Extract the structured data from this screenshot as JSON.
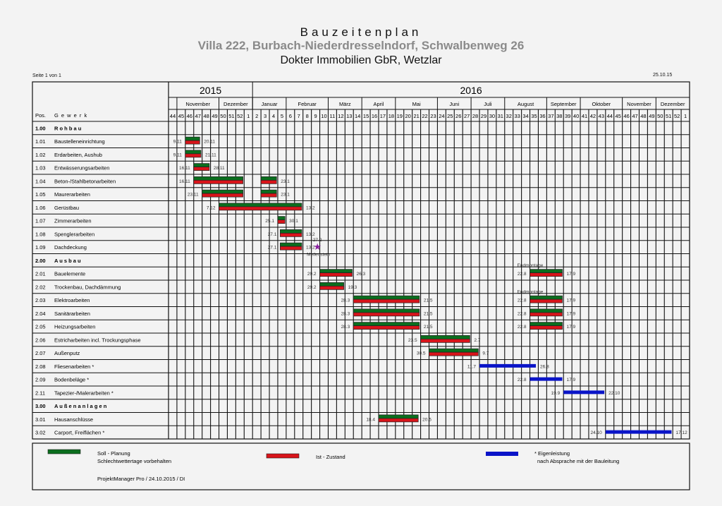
{
  "header": {
    "title": "Bauzeitenplan",
    "subtitle": "Villa 222, Burbach-Niederdresselndorf, Schwalbenweg 26",
    "company": "Dokter Immobilien GbR, Wetzlar",
    "page_info": "Seite 1 von 1",
    "date": "25.10.15"
  },
  "table": {
    "col_pos": "Pos.",
    "col_gewerk": "G e w e r k",
    "years": [
      {
        "label": "2015",
        "weeks": 10
      },
      {
        "label": "2016",
        "weeks": 52
      }
    ],
    "months": [
      {
        "label": "",
        "weeks": 1
      },
      {
        "label": "November",
        "weeks": 5
      },
      {
        "label": "Dezember",
        "weeks": 4
      },
      {
        "label": "Januar",
        "weeks": 4
      },
      {
        "label": "Februar",
        "weeks": 5
      },
      {
        "label": "März",
        "weeks": 4
      },
      {
        "label": "April",
        "weeks": 4
      },
      {
        "label": "Mai",
        "weeks": 5
      },
      {
        "label": "Juni",
        "weeks": 4
      },
      {
        "label": "Juli",
        "weeks": 4
      },
      {
        "label": "August",
        "weeks": 5
      },
      {
        "label": "September",
        "weeks": 4
      },
      {
        "label": "Oktober",
        "weeks": 5
      },
      {
        "label": "November",
        "weeks": 4
      },
      {
        "label": "Dezember",
        "weeks": 4
      }
    ],
    "weeks": [
      "44",
      "45",
      "46",
      "47",
      "48",
      "49",
      "50",
      "51",
      "52",
      "1",
      "2",
      "3",
      "4",
      "5",
      "6",
      "7",
      "8",
      "9",
      "10",
      "11",
      "12",
      "13",
      "14",
      "15",
      "16",
      "17",
      "18",
      "19",
      "20",
      "21",
      "22",
      "23",
      "24",
      "25",
      "26",
      "27",
      "28",
      "29",
      "30",
      "31",
      "32",
      "33",
      "34",
      "35",
      "36",
      "37",
      "38",
      "39",
      "40",
      "41",
      "42",
      "43",
      "44",
      "45",
      "46",
      "47",
      "48",
      "49",
      "50",
      "51",
      "52",
      "1"
    ],
    "timeline_start": "2015-10-26"
  },
  "rows": [
    {
      "pos": "1.00",
      "name": "R o h b a u",
      "group": true,
      "bars": []
    },
    {
      "pos": "1.01",
      "name": "Baustelleneinrichtung",
      "bars": [
        {
          "type": "soll-ist",
          "start": "2015-11-09",
          "end": "2015-11-20",
          "start_label": "9.11",
          "end_label": "20.11"
        }
      ]
    },
    {
      "pos": "1.02",
      "name": "Erdarbeiten, Aushub",
      "bars": [
        {
          "type": "soll-ist",
          "start": "2015-11-09",
          "end": "2015-11-21",
          "start_label": "9.11",
          "end_label": "21.11"
        }
      ]
    },
    {
      "pos": "1.03",
      "name": "Entwässerungsarbeiten",
      "bars": [
        {
          "type": "soll-ist",
          "start": "2015-11-16",
          "end": "2015-11-28",
          "start_label": "16.11",
          "end_label": "28.11"
        }
      ]
    },
    {
      "pos": "1.04",
      "name": "Beton-/Stahlbetonarbeiten",
      "bars": [
        {
          "type": "soll-ist",
          "start": "2015-11-16",
          "end": "2015-12-26",
          "start_label": "16.11",
          "end_label": ""
        },
        {
          "type": "soll-ist",
          "start": "2016-01-11",
          "end": "2016-01-23",
          "start_label": "",
          "end_label": "23.1"
        }
      ]
    },
    {
      "pos": "1.05",
      "name": "Maurerarbeiten",
      "bars": [
        {
          "type": "soll-ist",
          "start": "2015-11-23",
          "end": "2015-12-26",
          "start_label": "23.11",
          "end_label": ""
        },
        {
          "type": "soll-ist",
          "start": "2016-01-11",
          "end": "2016-01-23",
          "start_label": "",
          "end_label": "23.1"
        }
      ]
    },
    {
      "pos": "1.06",
      "name": "Gerüstbau",
      "bars": [
        {
          "type": "soll-ist",
          "start": "2015-12-07",
          "end": "2016-02-13",
          "start_label": "7.12",
          "end_label": "13.2"
        }
      ]
    },
    {
      "pos": "1.07",
      "name": "Zimmerarbeiten",
      "bars": [
        {
          "type": "soll-ist",
          "start": "2016-01-25",
          "end": "2016-01-30",
          "start_label": "25.1",
          "end_label": "30.1"
        }
      ]
    },
    {
      "pos": "1.08",
      "name": "Spenglerarbeiten",
      "bars": [
        {
          "type": "soll-ist",
          "start": "2016-01-27",
          "end": "2016-02-13",
          "start_label": "27.1",
          "end_label": "13.2"
        }
      ]
    },
    {
      "pos": "1.09",
      "name": "Dachdeckung",
      "bars": [
        {
          "type": "soll-ist",
          "start": "2016-01-27",
          "end": "2016-02-13",
          "start_label": "27.1",
          "end_label": "13.2"
        }
      ],
      "milestone": {
        "date": "2016-02-27",
        "label": "27.2",
        "caption": "Meilenstein"
      }
    },
    {
      "pos": "2.00",
      "name": "A u s b a u",
      "group": true,
      "bars": []
    },
    {
      "pos": "2.01",
      "name": "Bauelemente",
      "bars": [
        {
          "type": "soll-ist",
          "start": "2016-02-29",
          "end": "2016-03-26",
          "start_label": "29.2",
          "end_label": "26.3"
        },
        {
          "type": "soll-ist",
          "start": "2016-08-22",
          "end": "2016-09-17",
          "start_label": "22.8",
          "end_label": "17.9",
          "note": "Endmontage"
        }
      ]
    },
    {
      "pos": "2.02",
      "name": "Trockenbau, Dachdämmung",
      "bars": [
        {
          "type": "soll-ist",
          "start": "2016-02-29",
          "end": "2016-03-19",
          "start_label": "29.2",
          "end_label": "19.3"
        }
      ]
    },
    {
      "pos": "2.03",
      "name": "Elektroarbeiten",
      "bars": [
        {
          "type": "soll-ist",
          "start": "2016-03-28",
          "end": "2016-05-21",
          "start_label": "28.3",
          "end_label": "21.5"
        },
        {
          "type": "soll-ist",
          "start": "2016-08-22",
          "end": "2016-09-17",
          "start_label": "22.8",
          "end_label": "17.9",
          "note": "Endmontage"
        }
      ]
    },
    {
      "pos": "2.04",
      "name": "Sanitärarbeiten",
      "bars": [
        {
          "type": "soll-ist",
          "start": "2016-03-28",
          "end": "2016-05-21",
          "start_label": "28.3",
          "end_label": "21.5"
        },
        {
          "type": "soll-ist",
          "start": "2016-08-22",
          "end": "2016-09-17",
          "start_label": "22.8",
          "end_label": "17.9"
        }
      ]
    },
    {
      "pos": "2.05",
      "name": "Heizungsarbeiten",
      "bars": [
        {
          "type": "soll-ist",
          "start": "2016-03-28",
          "end": "2016-05-21",
          "start_label": "28.3",
          "end_label": "21.5"
        },
        {
          "type": "soll-ist",
          "start": "2016-08-22",
          "end": "2016-09-17",
          "start_label": "22.8",
          "end_label": "17.9"
        }
      ]
    },
    {
      "pos": "2.06",
      "name": "Estricharbeiten incl. Trockungsphase",
      "bars": [
        {
          "type": "soll-ist",
          "start": "2016-05-23",
          "end": "2016-07-02",
          "start_label": "23.5",
          "end_label": "2.7"
        }
      ]
    },
    {
      "pos": "2.07",
      "name": "Außenputz",
      "bars": [
        {
          "type": "soll-ist",
          "start": "2016-05-30",
          "end": "2016-07-09",
          "start_label": "30.5",
          "end_label": "9.7"
        }
      ]
    },
    {
      "pos": "2.08",
      "name": "Fliesenarbeiten *",
      "bars": [
        {
          "type": "eigen",
          "start": "2016-07-11",
          "end": "2016-08-26",
          "start_label": "11.7",
          "end_label": "26.8"
        }
      ]
    },
    {
      "pos": "2.09",
      "name": "Bodenbeläge *",
      "bars": [
        {
          "type": "eigen",
          "start": "2016-08-22",
          "end": "2016-09-17",
          "start_label": "22.8",
          "end_label": "17.9"
        }
      ]
    },
    {
      "pos": "2.11",
      "name": "Tapezier-/Malerarbeiten *",
      "bars": [
        {
          "type": "eigen",
          "start": "2016-09-19",
          "end": "2016-10-22",
          "start_label": "19.9",
          "end_label": "22.10"
        }
      ]
    },
    {
      "pos": "3.00",
      "name": "A u ß e n a n l a g e n",
      "group": true,
      "bars": []
    },
    {
      "pos": "3.01",
      "name": "Hausanschlüsse",
      "bars": [
        {
          "type": "soll-ist",
          "start": "2016-04-18",
          "end": "2016-05-20",
          "start_label": "18.4",
          "end_label": "20.5"
        }
      ]
    },
    {
      "pos": "3.02",
      "name": "Carport, Freiflächen *",
      "bars": [
        {
          "type": "eigen",
          "start": "2016-10-24",
          "end": "2016-12-17",
          "start_label": "24.10",
          "end_label": "17.12"
        }
      ]
    }
  ],
  "legend": {
    "soll_label": "Soll - Planung",
    "soll_note": "Schlechtwettertage vorbehalten",
    "ist_label": "Ist - Zustand",
    "eigen_label": "* Eigenleistung",
    "eigen_note": "nach Absprache mit der Bauleitung",
    "footer": "ProjektManager Pro / 24.10.2015 / DI"
  },
  "colors": {
    "soll": "#0b6e1e",
    "ist": "#d8141a",
    "eigen": "#0a14c8",
    "milestone": "#8a1fa0",
    "grid": "#111111"
  }
}
